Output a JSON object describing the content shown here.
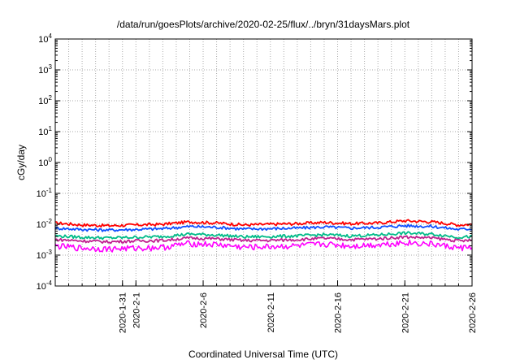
{
  "chart_data": {
    "type": "line",
    "title": "/data/run/goesPlots/archive/2020-02-25/flux/../bryn/31daysMars.plot",
    "xlabel": "Coordinated Universal Time (UTC)",
    "ylabel": "cGy/day",
    "yscale": "log",
    "ylim": [
      0.0001,
      10000
    ],
    "xlim": [
      "2020-01-26",
      "2020-02-26"
    ],
    "grid": true,
    "y_ticks": [
      {
        "mantissa": "10",
        "exp": "-4",
        "value": 0.0001
      },
      {
        "mantissa": "10",
        "exp": "-3",
        "value": 0.001
      },
      {
        "mantissa": "10",
        "exp": "-2",
        "value": 0.01
      },
      {
        "mantissa": "10",
        "exp": "-1",
        "value": 0.1
      },
      {
        "mantissa": "10",
        "exp": "0",
        "value": 1
      },
      {
        "mantissa": "10",
        "exp": "1",
        "value": 10
      },
      {
        "mantissa": "10",
        "exp": "2",
        "value": 100
      },
      {
        "mantissa": "10",
        "exp": "3",
        "value": 1000
      },
      {
        "mantissa": "10",
        "exp": "4",
        "value": 10000
      }
    ],
    "x_ticks": [
      {
        "label": "2020-1-31",
        "date": "2020-01-31"
      },
      {
        "label": "2020-2-1",
        "date": "2020-02-01"
      },
      {
        "label": "2020-2-6",
        "date": "2020-02-06"
      },
      {
        "label": "2020-2-11",
        "date": "2020-02-11"
      },
      {
        "label": "2020-2-16",
        "date": "2020-02-16"
      },
      {
        "label": "2020-2-21",
        "date": "2020-02-21"
      },
      {
        "label": "2020-2-26",
        "date": "2020-02-26"
      }
    ],
    "series": [
      {
        "color": "#ff0000",
        "x": [
          "2020-01-26",
          "2020-01-28",
          "2020-01-30",
          "2020-02-01",
          "2020-02-03",
          "2020-02-05",
          "2020-02-07",
          "2020-02-09",
          "2020-02-11",
          "2020-02-13",
          "2020-02-15",
          "2020-02-17",
          "2020-02-19",
          "2020-02-21",
          "2020-02-23",
          "2020-02-25",
          "2020-02-26"
        ],
        "values": [
          0.011,
          0.0095,
          0.009,
          0.0095,
          0.01,
          0.012,
          0.011,
          0.0095,
          0.01,
          0.0105,
          0.0115,
          0.0105,
          0.011,
          0.013,
          0.012,
          0.0095,
          0.01
        ]
      },
      {
        "color": "#1050ff",
        "x": [
          "2020-01-26",
          "2020-01-28",
          "2020-01-30",
          "2020-02-01",
          "2020-02-03",
          "2020-02-05",
          "2020-02-07",
          "2020-02-09",
          "2020-02-11",
          "2020-02-13",
          "2020-02-15",
          "2020-02-17",
          "2020-02-19",
          "2020-02-21",
          "2020-02-23",
          "2020-02-25",
          "2020-02-26"
        ],
        "values": [
          0.0075,
          0.0068,
          0.0065,
          0.0068,
          0.0072,
          0.0085,
          0.008,
          0.007,
          0.0072,
          0.0075,
          0.0082,
          0.0075,
          0.008,
          0.009,
          0.0085,
          0.0068,
          0.0072
        ]
      },
      {
        "color": "#00bb88",
        "x": [
          "2020-01-26",
          "2020-01-28",
          "2020-01-30",
          "2020-02-01",
          "2020-02-03",
          "2020-02-05",
          "2020-02-07",
          "2020-02-09",
          "2020-02-11",
          "2020-02-13",
          "2020-02-15",
          "2020-02-17",
          "2020-02-19",
          "2020-02-21",
          "2020-02-23",
          "2020-02-25",
          "2020-02-26"
        ],
        "values": [
          0.0042,
          0.0038,
          0.0036,
          0.0038,
          0.004,
          0.0048,
          0.0045,
          0.0039,
          0.004,
          0.0042,
          0.0046,
          0.0042,
          0.0045,
          0.0052,
          0.0048,
          0.0038,
          0.004
        ]
      },
      {
        "color": "#c02090",
        "x": [
          "2020-01-26",
          "2020-01-28",
          "2020-01-30",
          "2020-02-01",
          "2020-02-03",
          "2020-02-05",
          "2020-02-07",
          "2020-02-09",
          "2020-02-11",
          "2020-02-13",
          "2020-02-15",
          "2020-02-17",
          "2020-02-19",
          "2020-02-21",
          "2020-02-23",
          "2020-02-25",
          "2020-02-26"
        ],
        "values": [
          0.0032,
          0.0029,
          0.0027,
          0.0029,
          0.003,
          0.0036,
          0.0034,
          0.003,
          0.003,
          0.0032,
          0.0035,
          0.0032,
          0.0034,
          0.0039,
          0.0036,
          0.0029,
          0.003
        ]
      },
      {
        "color": "#ff00ff",
        "x": [
          "2020-01-26",
          "2020-01-28",
          "2020-01-30",
          "2020-02-01",
          "2020-02-03",
          "2020-02-05",
          "2020-02-07",
          "2020-02-09",
          "2020-02-11",
          "2020-02-13",
          "2020-02-15",
          "2020-02-17",
          "2020-02-19",
          "2020-02-21",
          "2020-02-23",
          "2020-02-25",
          "2020-02-26"
        ],
        "values": [
          0.002,
          0.0017,
          0.0016,
          0.0017,
          0.0018,
          0.0024,
          0.0022,
          0.0018,
          0.0019,
          0.002,
          0.0023,
          0.002,
          0.0022,
          0.0026,
          0.0023,
          0.0017,
          0.0019
        ]
      }
    ]
  }
}
